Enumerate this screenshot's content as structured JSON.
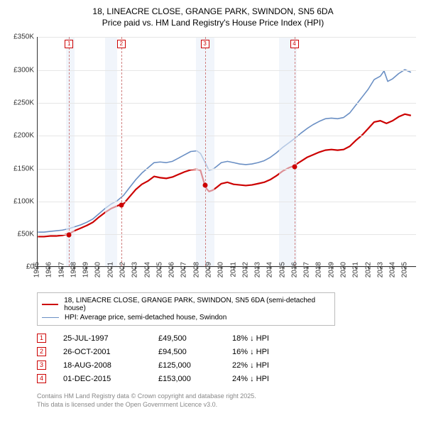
{
  "title_line1": "18, LINEACRE CLOSE, GRANGE PARK, SWINDON, SN5 6DA",
  "title_line2": "Price paid vs. HM Land Registry's House Price Index (HPI)",
  "chart": {
    "type": "line",
    "xlim": [
      1995,
      2025.9
    ],
    "ylim": [
      0,
      350000
    ],
    "ytick_step": 50000,
    "yticks": [
      "£0",
      "£50K",
      "£100K",
      "£150K",
      "£200K",
      "£250K",
      "£300K",
      "£350K"
    ],
    "xticks": [
      1995,
      1996,
      1997,
      1998,
      1999,
      2000,
      2001,
      2002,
      2003,
      2004,
      2005,
      2006,
      2007,
      2008,
      2009,
      2010,
      2011,
      2012,
      2013,
      2014,
      2015,
      2016,
      2017,
      2018,
      2019,
      2020,
      2021,
      2022,
      2023,
      2024,
      2025
    ],
    "background_color": "#ffffff",
    "grid_color": "#e6e6e6",
    "shade_color": "#e8eef8",
    "shade_ranges": [
      [
        1997.3,
        1998.0
      ],
      [
        2000.5,
        2001.5
      ],
      [
        2007.9,
        2009.4
      ],
      [
        2014.7,
        2016.1
      ]
    ],
    "vdash_color": "#d08080",
    "vdash_positions": [
      1997.56,
      2001.82,
      2008.63,
      2015.92
    ],
    "series": [
      {
        "name": "property",
        "color": "#cc0000",
        "width": 2.2,
        "label": "18, LINEACRE CLOSE, GRANGE PARK, SWINDON, SN5 6DA (semi-detached house)",
        "points": [
          [
            1995.0,
            45000
          ],
          [
            1995.5,
            45000
          ],
          [
            1996.0,
            46000
          ],
          [
            1996.5,
            46000
          ],
          [
            1997.0,
            47000
          ],
          [
            1997.56,
            49500
          ],
          [
            1998.0,
            54000
          ],
          [
            1998.5,
            58000
          ],
          [
            1999.0,
            62000
          ],
          [
            1999.5,
            67000
          ],
          [
            2000.0,
            75000
          ],
          [
            2000.5,
            82000
          ],
          [
            2001.0,
            88000
          ],
          [
            2001.5,
            92000
          ],
          [
            2001.82,
            94500
          ],
          [
            2002.0,
            95000
          ],
          [
            2002.5,
            106000
          ],
          [
            2003.0,
            117000
          ],
          [
            2003.5,
            125000
          ],
          [
            2004.0,
            130000
          ],
          [
            2004.5,
            137000
          ],
          [
            2005.0,
            135000
          ],
          [
            2005.5,
            134000
          ],
          [
            2006.0,
            136000
          ],
          [
            2006.5,
            140000
          ],
          [
            2007.0,
            144000
          ],
          [
            2007.5,
            147000
          ],
          [
            2008.0,
            148000
          ],
          [
            2008.3,
            146000
          ],
          [
            2008.63,
            125000
          ],
          [
            2008.8,
            118000
          ],
          [
            2009.0,
            114000
          ],
          [
            2009.3,
            116000
          ],
          [
            2009.6,
            120000
          ],
          [
            2010.0,
            126000
          ],
          [
            2010.5,
            128000
          ],
          [
            2011.0,
            125000
          ],
          [
            2011.5,
            124000
          ],
          [
            2012.0,
            123000
          ],
          [
            2012.5,
            124000
          ],
          [
            2013.0,
            126000
          ],
          [
            2013.5,
            128000
          ],
          [
            2014.0,
            132000
          ],
          [
            2014.5,
            138000
          ],
          [
            2015.0,
            145000
          ],
          [
            2015.5,
            150000
          ],
          [
            2015.92,
            153000
          ],
          [
            2016.0,
            154000
          ],
          [
            2016.5,
            160000
          ],
          [
            2017.0,
            166000
          ],
          [
            2017.5,
            170000
          ],
          [
            2018.0,
            174000
          ],
          [
            2018.5,
            177000
          ],
          [
            2019.0,
            178000
          ],
          [
            2019.5,
            177000
          ],
          [
            2020.0,
            178000
          ],
          [
            2020.5,
            183000
          ],
          [
            2021.0,
            192000
          ],
          [
            2021.5,
            200000
          ],
          [
            2022.0,
            210000
          ],
          [
            2022.5,
            220000
          ],
          [
            2023.0,
            222000
          ],
          [
            2023.5,
            218000
          ],
          [
            2024.0,
            222000
          ],
          [
            2024.5,
            228000
          ],
          [
            2025.0,
            232000
          ],
          [
            2025.5,
            230000
          ]
        ]
      },
      {
        "name": "hpi",
        "color": "#6a8fc4",
        "width": 1.6,
        "label": "HPI: Average price, semi-detached house, Swindon",
        "points": [
          [
            1995.0,
            52000
          ],
          [
            1995.5,
            52000
          ],
          [
            1996.0,
            53000
          ],
          [
            1996.5,
            54000
          ],
          [
            1997.0,
            55000
          ],
          [
            1997.5,
            57000
          ],
          [
            1998.0,
            60000
          ],
          [
            1998.5,
            63000
          ],
          [
            1999.0,
            67000
          ],
          [
            1999.5,
            72000
          ],
          [
            2000.0,
            80000
          ],
          [
            2000.5,
            88000
          ],
          [
            2001.0,
            95000
          ],
          [
            2001.5,
            100000
          ],
          [
            2002.0,
            108000
          ],
          [
            2002.5,
            120000
          ],
          [
            2003.0,
            132000
          ],
          [
            2003.5,
            142000
          ],
          [
            2004.0,
            150000
          ],
          [
            2004.5,
            158000
          ],
          [
            2005.0,
            159000
          ],
          [
            2005.5,
            158000
          ],
          [
            2006.0,
            160000
          ],
          [
            2006.5,
            165000
          ],
          [
            2007.0,
            170000
          ],
          [
            2007.5,
            175000
          ],
          [
            2008.0,
            176000
          ],
          [
            2008.3,
            172000
          ],
          [
            2008.63,
            160000
          ],
          [
            2009.0,
            146000
          ],
          [
            2009.3,
            148000
          ],
          [
            2009.6,
            152000
          ],
          [
            2010.0,
            158000
          ],
          [
            2010.5,
            160000
          ],
          [
            2011.0,
            158000
          ],
          [
            2011.5,
            156000
          ],
          [
            2012.0,
            155000
          ],
          [
            2012.5,
            156000
          ],
          [
            2013.0,
            158000
          ],
          [
            2013.5,
            161000
          ],
          [
            2014.0,
            166000
          ],
          [
            2014.5,
            173000
          ],
          [
            2015.0,
            181000
          ],
          [
            2015.5,
            188000
          ],
          [
            2016.0,
            195000
          ],
          [
            2016.5,
            203000
          ],
          [
            2017.0,
            210000
          ],
          [
            2017.5,
            216000
          ],
          [
            2018.0,
            221000
          ],
          [
            2018.5,
            225000
          ],
          [
            2019.0,
            226000
          ],
          [
            2019.5,
            225000
          ],
          [
            2020.0,
            227000
          ],
          [
            2020.5,
            234000
          ],
          [
            2021.0,
            246000
          ],
          [
            2021.5,
            258000
          ],
          [
            2022.0,
            270000
          ],
          [
            2022.5,
            285000
          ],
          [
            2023.0,
            290000
          ],
          [
            2023.3,
            298000
          ],
          [
            2023.6,
            282000
          ],
          [
            2024.0,
            286000
          ],
          [
            2024.5,
            294000
          ],
          [
            2025.0,
            300000
          ],
          [
            2025.5,
            296000
          ]
        ]
      }
    ],
    "sale_markers": [
      {
        "n": "1",
        "x": 1997.56,
        "y": 49500
      },
      {
        "n": "2",
        "x": 2001.82,
        "y": 94500
      },
      {
        "n": "3",
        "x": 2008.63,
        "y": 125000
      },
      {
        "n": "4",
        "x": 2015.92,
        "y": 153000
      }
    ]
  },
  "legend": {
    "items": [
      {
        "color": "#cc0000",
        "width": 2.2,
        "label": "18, LINEACRE CLOSE, GRANGE PARK, SWINDON, SN5 6DA (semi-detached house)"
      },
      {
        "color": "#6a8fc4",
        "width": 1.6,
        "label": "HPI: Average price, semi-detached house, Swindon"
      }
    ]
  },
  "price_table": {
    "rows": [
      {
        "n": "1",
        "date": "25-JUL-1997",
        "price": "£49,500",
        "diff": "18% ↓ HPI"
      },
      {
        "n": "2",
        "date": "26-OCT-2001",
        "price": "£94,500",
        "diff": "16% ↓ HPI"
      },
      {
        "n": "3",
        "date": "18-AUG-2008",
        "price": "£125,000",
        "diff": "22% ↓ HPI"
      },
      {
        "n": "4",
        "date": "01-DEC-2015",
        "price": "£153,000",
        "diff": "24% ↓ HPI"
      }
    ]
  },
  "footer_line1": "Contains HM Land Registry data © Crown copyright and database right 2025.",
  "footer_line2": "This data is licensed under the Open Government Licence v3.0."
}
